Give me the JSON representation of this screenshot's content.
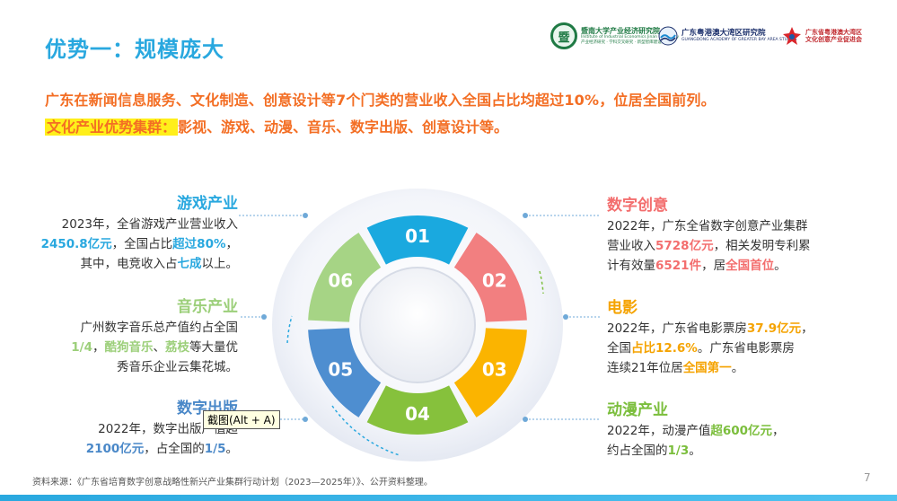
{
  "title": "优势一：规模庞大",
  "logos": [
    {
      "seal": "暨",
      "name": "暨南大学产业经济研究院",
      "sub": "Institute of Industrial Economics Jinan University",
      "sub2": "产业经济研究 · 学科交叉研究 · 新型智库建设"
    },
    {
      "name": "广东粤港澳大湾区研究院",
      "sub": "GUANGDONG ACADEMY OF GREATER BAY AREA STUDIES"
    },
    {
      "name": "广东省粤港澳大湾区",
      "name2": "文化创意产业促进会"
    }
  ],
  "headline": "广东在新闻信息服务、文化制造、创意设计等7个门类的营业收入全国占比均超过10%，位居全国前列。",
  "cluster": {
    "label": "文化产业优势集群：",
    "items": "影视、游戏、动漫、音乐、数字出版、创意设计等。"
  },
  "segments": [
    {
      "num": "01",
      "color": "#1aa9df"
    },
    {
      "num": "02",
      "color": "#f27f80"
    },
    {
      "num": "03",
      "color": "#fbb400"
    },
    {
      "num": "04",
      "color": "#86c13c"
    },
    {
      "num": "05",
      "color": "#4e8ed0"
    },
    {
      "num": "06",
      "color": "#a6d485"
    }
  ],
  "sections": {
    "games": {
      "title": "游戏产业",
      "t1": "2023年，全省游戏产业营业收入",
      "v1": "2450.8亿元",
      "t2": "，全国占比",
      "v2": "超过80%",
      "t3": "，",
      "t4": "其中，电竞收入占",
      "v3": "七成",
      "t5": "以上。"
    },
    "music": {
      "title": "音乐产业",
      "t1": "广州数字音乐总产值约占全国",
      "v1": "1/4",
      "t2": "，",
      "v2": "酷狗音乐",
      "t3": "、",
      "v3": "荔枝",
      "t4": "等大量优",
      "t5": "秀音乐企业云集花城。"
    },
    "publishing": {
      "title": "数字出版",
      "t1": "2022年，数字出版产值超",
      "v1": "2100亿元",
      "t2": "，占全国的",
      "v2": "1/5",
      "t3": "。"
    },
    "creative": {
      "title": "数字创意",
      "t1": "2022年，广东全省数字创意产业集群",
      "t2": "营业收入",
      "v1": "5728亿元",
      "t3": "，相关发明专利累",
      "t4": "计有效量",
      "v2": "6521件",
      "t5": "，居",
      "v3": "全国首位",
      "t6": "。"
    },
    "film": {
      "title": "电影",
      "t1": "2022年，广东省电影票房",
      "v1": "37.9亿元",
      "t2": "，",
      "t3": "全国",
      "v2": "占比12.6%",
      "t4": "。广东省电影票房",
      "t5": "连续21年位居",
      "v3": "全国第一",
      "t6": "。"
    },
    "animation": {
      "title": "动漫产业",
      "t1": "2022年，动漫产值",
      "v1": "超600亿元",
      "t2": "，",
      "t3": "约占全国的",
      "v2": "1/3",
      "t4": "。"
    }
  },
  "tooltip": "截图(Alt + A)",
  "footnote": "资料来源：《广东省培育数字创意战略性新兴产业集群行动计划（2023—2025年）》、公开资料整理。",
  "page_number": "7"
}
